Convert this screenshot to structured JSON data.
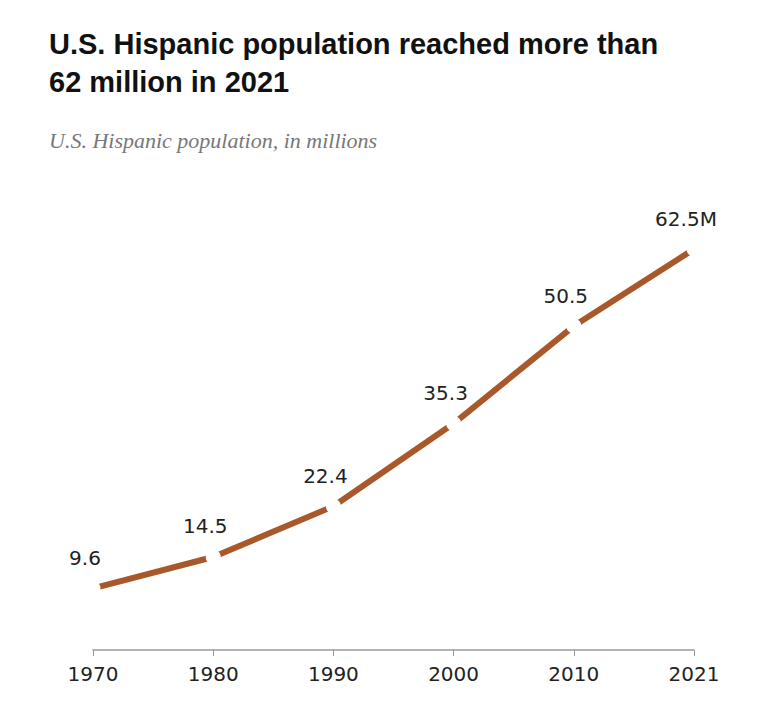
{
  "chart_data": {
    "type": "line",
    "title": "U.S. Hispanic population reached more than 62 million in 2021",
    "subtitle": "U.S. Hispanic population, in millions",
    "categories": [
      "1970",
      "1980",
      "1990",
      "2000",
      "2010",
      "2021"
    ],
    "values": [
      9.6,
      14.5,
      22.4,
      35.3,
      50.5,
      62.5
    ],
    "value_labels": [
      "9.6",
      "14.5",
      "22.4",
      "35.3",
      "50.5",
      "62.5M"
    ],
    "color": "#a8582a",
    "marker": "circle",
    "ylim": [
      0,
      70
    ],
    "grid": false,
    "data_labels": true,
    "tick_labels": "x"
  }
}
